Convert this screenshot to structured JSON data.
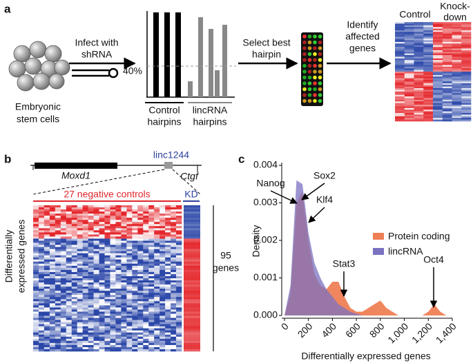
{
  "panel_a": {
    "label": "a",
    "cells_label": [
      "Embryonic",
      "stem cells"
    ],
    "infect_label": [
      "Infect with",
      "shRNA"
    ],
    "threshold_label": "40%",
    "control_label": [
      "Control",
      "hairpins"
    ],
    "lincrna_label": [
      "lincRNA",
      "hairpins"
    ],
    "select_label": [
      "Select best",
      "hairpin"
    ],
    "identify_label": [
      "Identify",
      "affected",
      "genes"
    ],
    "heatmap_control": "Control",
    "heatmap_kd": [
      "Knock-",
      "down"
    ]
  },
  "panel_b": {
    "label": "b",
    "gene_left": "Moxd1",
    "gene_linc": "linc1244",
    "gene_right": "Ctgf",
    "controls_label": "27 negative controls",
    "kd_label": "KD",
    "ylabel": [
      "Differentially",
      "expressed genes"
    ],
    "count_label": [
      "95",
      "genes"
    ]
  },
  "panel_c": {
    "label": "c"
  },
  "chart_data": {
    "type": "area",
    "xlabel": "Differentially expressed genes",
    "ylabel": "Density",
    "x": [
      0,
      50,
      100,
      150,
      200,
      250,
      300,
      350,
      400,
      450,
      500,
      550,
      600,
      650,
      700,
      750,
      800,
      850,
      900,
      950,
      1000,
      1050,
      1100,
      1150,
      1200,
      1250,
      1300,
      1350,
      1400
    ],
    "series": [
      {
        "name": "Protein coding",
        "color": "#ee7f55",
        "values": [
          0,
          0.0006,
          0.003,
          0.0033,
          0.002,
          0.0011,
          0.0008,
          0.0007,
          0.0009,
          0.0009,
          0.0005,
          0.0002,
          0.0001,
          0.0001,
          0.0002,
          0.0003,
          0.0004,
          0.0002,
          0.0001,
          0,
          0,
          0,
          0,
          0,
          0.0001,
          0.0003,
          0.0001,
          0,
          0
        ]
      },
      {
        "name": "lincRNA",
        "color": "#7b72c2",
        "values": [
          0,
          0.0008,
          0.0036,
          0.0035,
          0.0022,
          0.0014,
          0.001,
          0.0007,
          0.0005,
          0.0003,
          0.0002,
          0.0001,
          5e-05,
          0,
          0,
          0,
          0,
          0,
          0,
          0,
          0,
          0,
          0,
          0,
          0,
          0,
          0,
          0,
          0
        ]
      }
    ],
    "xlim": [
      0,
      1400
    ],
    "ylim": [
      0,
      0.004
    ],
    "xticks": [
      0,
      200,
      400,
      600,
      800,
      {
        "value": 1000,
        "label": "1,000"
      },
      {
        "value": 1200,
        "label": "1,200"
      },
      {
        "value": 1400,
        "label": "1,400"
      }
    ],
    "yticks": [
      {
        "value": 0,
        "label": "0.000"
      },
      0.001,
      0.002,
      0.003,
      0.004
    ],
    "legend": "right",
    "annotations": [
      "Nanog",
      "Sox2",
      "Klf4",
      "Stat3",
      "Oct4"
    ]
  }
}
